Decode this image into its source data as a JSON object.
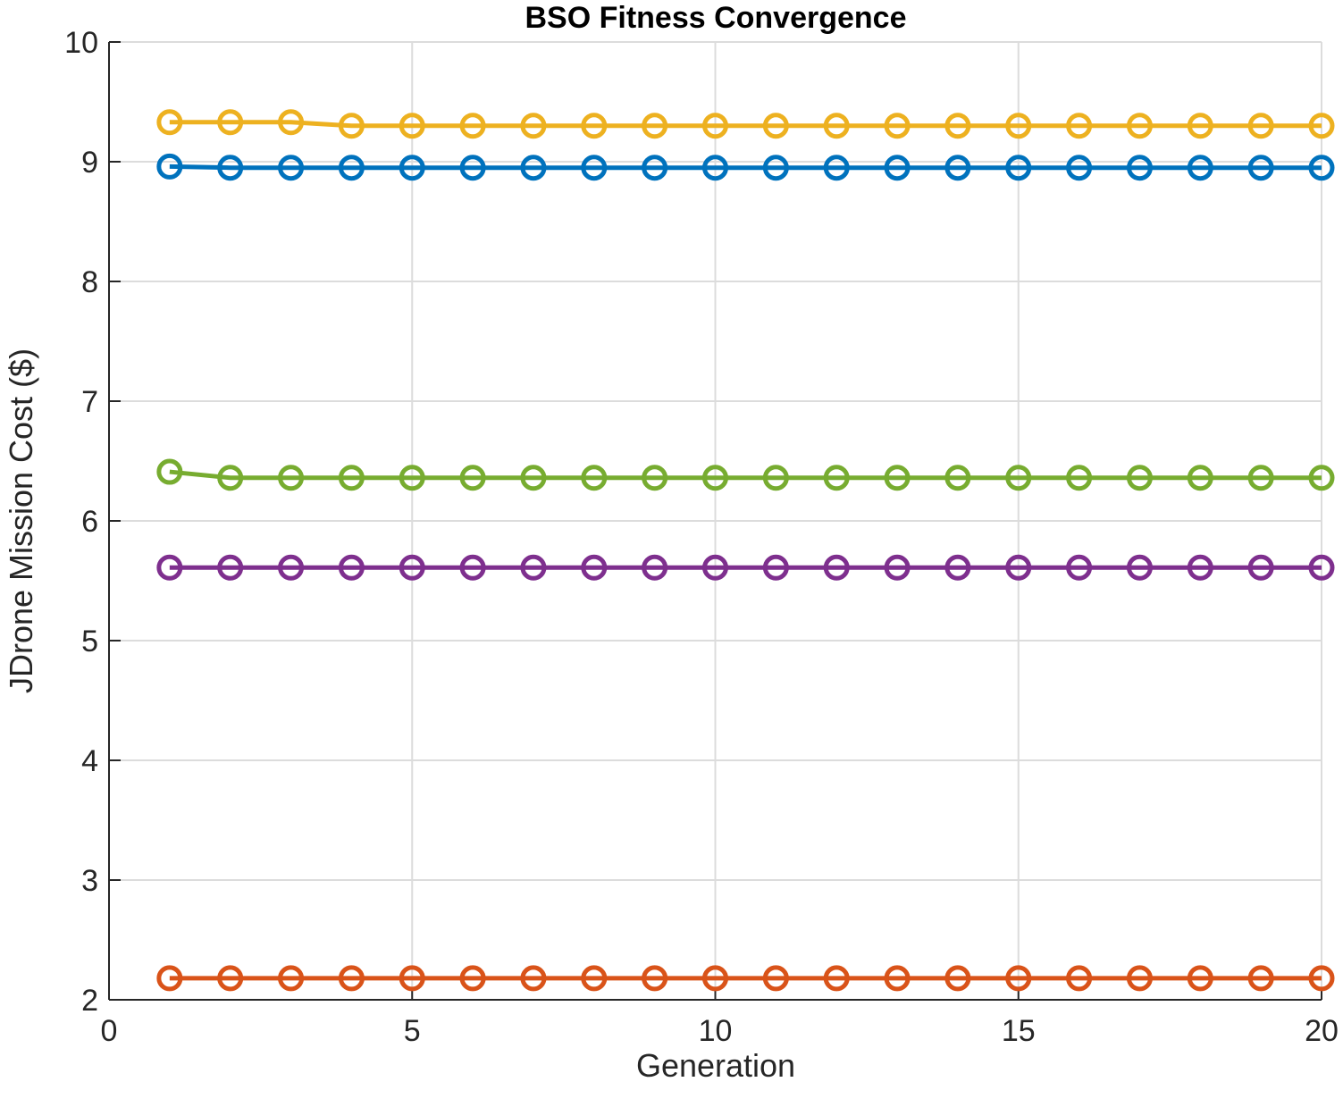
{
  "chart_data": {
    "type": "line",
    "title": "BSO Fitness Convergence",
    "xlabel": "Generation",
    "ylabel": "JDrone Mission Cost ($)",
    "xlim": [
      0,
      20
    ],
    "ylim": [
      2,
      10
    ],
    "xticks": [
      0,
      5,
      10,
      15,
      20
    ],
    "yticks": [
      2,
      3,
      4,
      5,
      6,
      7,
      8,
      9,
      10
    ],
    "grid": true,
    "marker": "circle",
    "x": [
      1,
      2,
      3,
      4,
      5,
      6,
      7,
      8,
      9,
      10,
      11,
      12,
      13,
      14,
      15,
      16,
      17,
      18,
      19,
      20
    ],
    "series": [
      {
        "color": "#0072BD",
        "values": [
          8.96,
          8.95,
          8.95,
          8.95,
          8.95,
          8.95,
          8.95,
          8.95,
          8.95,
          8.95,
          8.95,
          8.95,
          8.95,
          8.95,
          8.95,
          8.95,
          8.95,
          8.95,
          8.95,
          8.95
        ]
      },
      {
        "color": "#D95319",
        "values": [
          2.18,
          2.18,
          2.18,
          2.18,
          2.18,
          2.18,
          2.18,
          2.18,
          2.18,
          2.18,
          2.18,
          2.18,
          2.18,
          2.18,
          2.18,
          2.18,
          2.18,
          2.18,
          2.18,
          2.18
        ]
      },
      {
        "color": "#EDB120",
        "values": [
          9.33,
          9.33,
          9.33,
          9.3,
          9.3,
          9.3,
          9.3,
          9.3,
          9.3,
          9.3,
          9.3,
          9.3,
          9.3,
          9.3,
          9.3,
          9.3,
          9.3,
          9.3,
          9.3,
          9.3
        ]
      },
      {
        "color": "#7E2F8E",
        "values": [
          5.61,
          5.61,
          5.61,
          5.61,
          5.61,
          5.61,
          5.61,
          5.61,
          5.61,
          5.61,
          5.61,
          5.61,
          5.61,
          5.61,
          5.61,
          5.61,
          5.61,
          5.61,
          5.61,
          5.61
        ]
      },
      {
        "color": "#77AC30",
        "values": [
          6.41,
          6.36,
          6.36,
          6.36,
          6.36,
          6.36,
          6.36,
          6.36,
          6.36,
          6.36,
          6.36,
          6.36,
          6.36,
          6.36,
          6.36,
          6.36,
          6.36,
          6.36,
          6.36,
          6.36
        ]
      }
    ]
  }
}
